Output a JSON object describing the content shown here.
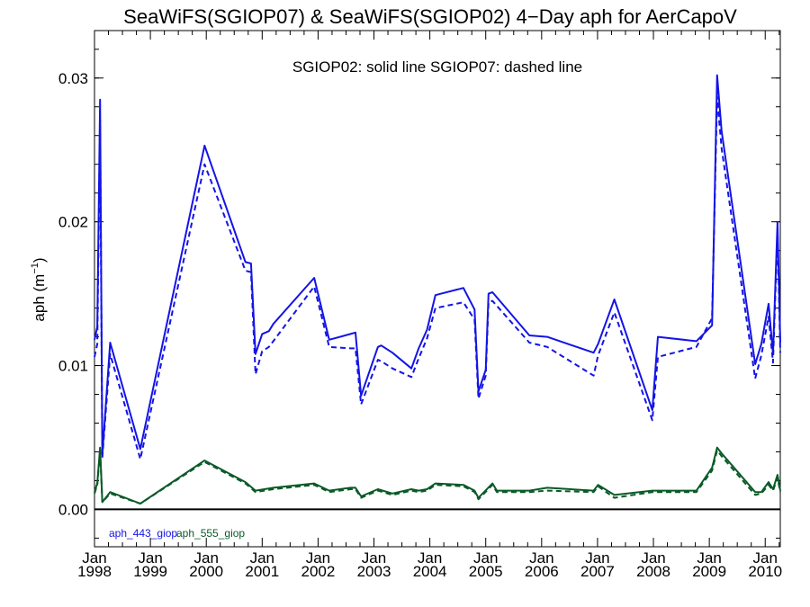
{
  "chart_data": {
    "type": "line",
    "title": "SeaWiFS(SGIOP07) & SeaWiFS(SGIOP02) 4−Day aph for AerCapoV",
    "annotation": "SGIOP02: solid line   SGIOP07: dashed line",
    "ylabel": "aph (m",
    "ylabel_superscript": "−1",
    "ylabel_close": ")",
    "xlim": [
      1998.0,
      2010.27
    ],
    "ylim": [
      -0.0026,
      0.0333
    ],
    "yticks": [
      {
        "value": 0.0,
        "label": "0.00"
      },
      {
        "value": 0.01,
        "label": "0.01"
      },
      {
        "value": 0.02,
        "label": "0.02"
      },
      {
        "value": 0.03,
        "label": "0.03"
      }
    ],
    "xticks": [
      {
        "value": 1998,
        "month": "Jan",
        "year": "1998"
      },
      {
        "value": 1999,
        "month": "Jan",
        "year": "1999"
      },
      {
        "value": 2000,
        "month": "Jan",
        "year": "2000"
      },
      {
        "value": 2001,
        "month": "Jan",
        "year": "2001"
      },
      {
        "value": 2002,
        "month": "Jan",
        "year": "2002"
      },
      {
        "value": 2003,
        "month": "Jan",
        "year": "2003"
      },
      {
        "value": 2004,
        "month": "Jan",
        "year": "2004"
      },
      {
        "value": 2005,
        "month": "Jan",
        "year": "2005"
      },
      {
        "value": 2006,
        "month": "Jan",
        "year": "2006"
      },
      {
        "value": 2007,
        "month": "Jan",
        "year": "2007"
      },
      {
        "value": 2008,
        "month": "Jan",
        "year": "2008"
      },
      {
        "value": 2009,
        "month": "Jan",
        "year": "2009"
      },
      {
        "value": 2010,
        "month": "Jan",
        "year": "2010"
      }
    ],
    "zero_line": true,
    "grid": false,
    "legend_position": "bottom-left",
    "series": [
      {
        "name": "aph_443_giop",
        "color": "#1414e6",
        "style": "solid",
        "x": [
          1998.0,
          1998.05,
          1998.1,
          1998.14,
          1998.28,
          1998.82,
          1999.97,
          2000.7,
          2000.8,
          2000.88,
          2001.0,
          2001.12,
          2001.2,
          2001.93,
          2002.2,
          2002.58,
          2002.67,
          2002.77,
          2003.07,
          2003.13,
          2003.33,
          2003.67,
          2003.8,
          2003.95,
          2004.1,
          2004.6,
          2004.8,
          2004.87,
          2005.0,
          2005.05,
          2005.12,
          2005.78,
          2006.1,
          2006.93,
          2007.01,
          2007.3,
          2007.98,
          2008.08,
          2008.77,
          2009.05,
          2009.14,
          2009.22,
          2009.82,
          2009.93,
          2010.06,
          2010.14,
          2010.22,
          2010.27
        ],
        "y": [
          0.0118,
          0.0127,
          0.0285,
          0.0038,
          0.0116,
          0.0042,
          0.0253,
          0.0172,
          0.0171,
          0.0108,
          0.0122,
          0.0124,
          0.0129,
          0.0161,
          0.0118,
          0.0122,
          0.0123,
          0.0079,
          0.0113,
          0.0114,
          0.0109,
          0.0098,
          0.0112,
          0.0125,
          0.0149,
          0.0154,
          0.0139,
          0.0082,
          0.0097,
          0.015,
          0.0151,
          0.0121,
          0.012,
          0.0109,
          0.0115,
          0.0146,
          0.0069,
          0.012,
          0.0117,
          0.0128,
          0.0302,
          0.0263,
          0.0101,
          0.0115,
          0.0143,
          0.0108,
          0.02,
          0.0116
        ]
      },
      {
        "name": "aph_443_giop_sgiop07",
        "color": "#1414e6",
        "style": "dashed",
        "x": [
          1998.0,
          1998.05,
          1998.1,
          1998.14,
          1998.28,
          1998.82,
          1999.97,
          2000.7,
          2000.8,
          2000.88,
          2001.0,
          2001.12,
          2001.2,
          2001.93,
          2002.2,
          2002.58,
          2002.67,
          2002.77,
          2003.07,
          2003.13,
          2003.33,
          2003.67,
          2003.8,
          2003.95,
          2004.1,
          2004.6,
          2004.8,
          2004.87,
          2005.0,
          2005.05,
          2005.12,
          2005.78,
          2006.1,
          2006.93,
          2007.01,
          2007.3,
          2007.98,
          2008.08,
          2008.77,
          2009.05,
          2009.14,
          2009.22,
          2009.82,
          2009.93,
          2010.06,
          2010.14,
          2010.22,
          2010.27
        ],
        "y": [
          0.0106,
          0.0115,
          0.0271,
          0.0036,
          0.0108,
          0.0035,
          0.024,
          0.0166,
          0.0165,
          0.0094,
          0.011,
          0.0113,
          0.0117,
          0.0155,
          0.0113,
          0.0112,
          0.0112,
          0.0073,
          0.0104,
          0.0103,
          0.0098,
          0.0092,
          0.0105,
          0.0119,
          0.014,
          0.0144,
          0.0132,
          0.0077,
          0.0093,
          0.0144,
          0.0145,
          0.0116,
          0.0113,
          0.0093,
          0.0107,
          0.0137,
          0.0062,
          0.0106,
          0.0113,
          0.0133,
          0.0287,
          0.0251,
          0.0091,
          0.0107,
          0.0134,
          0.0102,
          0.0193,
          0.0109
        ]
      },
      {
        "name": "aph_555_giop",
        "color": "#0a5a28",
        "style": "solid",
        "x": [
          1998.0,
          1998.05,
          1998.1,
          1998.14,
          1998.28,
          1998.82,
          1999.97,
          2000.7,
          2000.88,
          2001.2,
          2001.93,
          2002.2,
          2002.58,
          2002.67,
          2002.77,
          2003.07,
          2003.33,
          2003.67,
          2003.8,
          2003.95,
          2004.1,
          2004.6,
          2004.8,
          2004.87,
          2005.12,
          2005.2,
          2005.78,
          2006.1,
          2006.93,
          2007.01,
          2007.3,
          2007.98,
          2008.77,
          2009.05,
          2009.14,
          2009.22,
          2009.82,
          2009.93,
          2010.06,
          2010.14,
          2010.22,
          2010.27
        ],
        "y": [
          0.0012,
          0.0018,
          0.0043,
          0.0005,
          0.0012,
          0.0004,
          0.0034,
          0.0019,
          0.0013,
          0.0015,
          0.0018,
          0.0013,
          0.0015,
          0.0015,
          0.0009,
          0.0014,
          0.0011,
          0.0014,
          0.0013,
          0.0014,
          0.0018,
          0.0017,
          0.0013,
          0.0008,
          0.0018,
          0.0013,
          0.0013,
          0.0015,
          0.0013,
          0.0017,
          0.001,
          0.0013,
          0.0013,
          0.0029,
          0.0043,
          0.0039,
          0.0012,
          0.0012,
          0.0019,
          0.0014,
          0.0024,
          0.0013
        ]
      },
      {
        "name": "aph_555_giop_sgiop07",
        "color": "#0a5a28",
        "style": "dashed",
        "x": [
          1998.0,
          1998.05,
          1998.1,
          1998.14,
          1998.28,
          1998.82,
          1999.97,
          2000.7,
          2000.88,
          2001.2,
          2001.93,
          2002.2,
          2002.58,
          2002.67,
          2002.77,
          2003.07,
          2003.33,
          2003.67,
          2003.8,
          2003.95,
          2004.1,
          2004.6,
          2004.8,
          2004.87,
          2005.12,
          2005.2,
          2005.78,
          2006.1,
          2006.93,
          2007.01,
          2007.3,
          2007.98,
          2008.77,
          2009.05,
          2009.14,
          2009.22,
          2009.82,
          2009.93,
          2010.06,
          2010.14,
          2010.22,
          2010.27
        ],
        "y": [
          0.0011,
          0.0017,
          0.0041,
          0.0005,
          0.0011,
          0.0004,
          0.0033,
          0.0018,
          0.0012,
          0.0014,
          0.0017,
          0.0012,
          0.0014,
          0.0014,
          0.0008,
          0.0013,
          0.001,
          0.0013,
          0.0012,
          0.0013,
          0.0017,
          0.0016,
          0.0012,
          0.0007,
          0.0017,
          0.0012,
          0.0012,
          0.0013,
          0.0012,
          0.0016,
          0.0008,
          0.0012,
          0.0012,
          0.0027,
          0.0041,
          0.0037,
          0.001,
          0.0011,
          0.0017,
          0.0013,
          0.0022,
          0.0012
        ]
      }
    ],
    "legend": [
      {
        "label": "aph_443_giop",
        "color": "#1414e6"
      },
      {
        "label": "aph_555_giop",
        "color": "#0a5a28"
      }
    ]
  }
}
